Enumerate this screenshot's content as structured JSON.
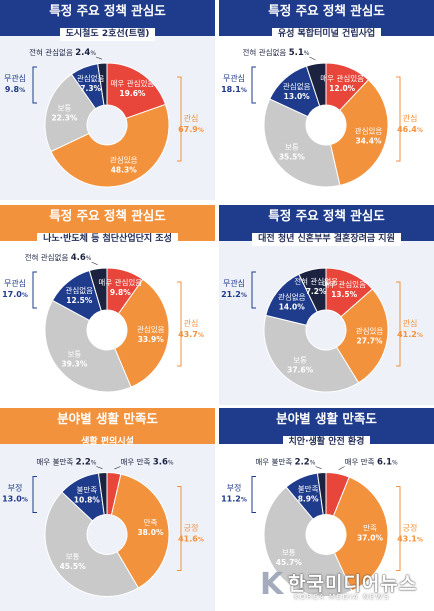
{
  "colors": {
    "orange": "#f3923c",
    "navy": "#1f3b8c",
    "red": "#e8463a",
    "gray": "#c9c9c9",
    "dark": "#1c2340"
  },
  "panels": [
    {
      "title": "특정 주요 정책 관심도",
      "subtitle": "도시철도 2호선(트램)"
    },
    {
      "title": "특정 주요 정책 관심도",
      "subtitle": "유성 복합터미널 건립사업"
    },
    {
      "title": "특정 주요 정책 관심도",
      "subtitle": "나노·반도체 등 첨단산업단지 조성"
    },
    {
      "title": "특정 주요 정책 관심도",
      "subtitle": "대전 청년 신혼부부 결혼장려금 지원"
    },
    {
      "title": "분야별 생활 만족도",
      "subtitle": "생활 편의시설"
    },
    {
      "title": "분야별 생활 만족도",
      "subtitle": "치안·생활 안전 환경"
    }
  ],
  "chart_data": [
    {
      "type": "pie",
      "categories": [
        "매우 관심있음",
        "관심있음",
        "보통",
        "관심없음",
        "전혀 관심없음"
      ],
      "values": [
        19.6,
        48.3,
        22.3,
        7.3,
        2.4
      ],
      "groups": [
        {
          "label": "관심",
          "value": "67.9"
        },
        {
          "label": "무관심",
          "value": "9.8"
        }
      ]
    },
    {
      "type": "pie",
      "categories": [
        "매우 관심있음",
        "관심있음",
        "보통",
        "관심없음",
        "전혀 관심없음"
      ],
      "values": [
        12.0,
        34.4,
        35.5,
        13.0,
        5.1
      ],
      "groups": [
        {
          "label": "관심",
          "value": "46.4"
        },
        {
          "label": "무관심",
          "value": "18.1"
        }
      ]
    },
    {
      "type": "pie",
      "categories": [
        "매우 관심있음",
        "관심있음",
        "보통",
        "관심없음",
        "전혀 관심없음"
      ],
      "values": [
        9.8,
        33.9,
        39.3,
        12.5,
        4.6
      ],
      "groups": [
        {
          "label": "관심",
          "value": "43.7"
        },
        {
          "label": "무관심",
          "value": "17.0"
        }
      ]
    },
    {
      "type": "pie",
      "categories": [
        "매우 관심있음",
        "관심있음",
        "보통",
        "관심없음",
        "전혀 관심없음"
      ],
      "values": [
        13.5,
        27.7,
        37.6,
        14.0,
        7.2
      ],
      "groups": [
        {
          "label": "관심",
          "value": "41.2"
        },
        {
          "label": "무관심",
          "value": "21.2"
        }
      ]
    },
    {
      "type": "pie",
      "categories": [
        "매우 만족",
        "만족",
        "보통",
        "불만족",
        "매우 불만족"
      ],
      "values": [
        3.6,
        38.0,
        45.5,
        10.8,
        2.2
      ],
      "groups": [
        {
          "label": "긍정",
          "value": "41.6"
        },
        {
          "label": "부정",
          "value": "13.0"
        }
      ]
    },
    {
      "type": "pie",
      "categories": [
        "매우 만족",
        "만족",
        "보통",
        "불만족",
        "매우 불만족"
      ],
      "values": [
        6.1,
        37.0,
        45.7,
        8.9,
        2.2
      ],
      "groups": [
        {
          "label": "긍정",
          "value": "43.1"
        },
        {
          "label": "부정",
          "value": "11.2"
        }
      ]
    }
  ],
  "watermark": {
    "mark": "K",
    "name": "한국미디어뉴스",
    "sub": "KOREA MEDIA NEWS"
  }
}
